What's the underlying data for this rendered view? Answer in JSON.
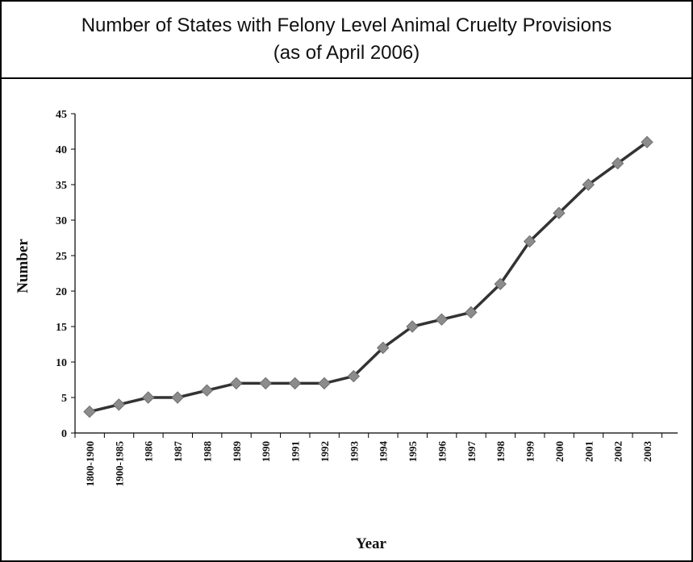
{
  "header": {
    "title": "Number of States with Felony Level Animal Cruelty Provisions",
    "subtitle": "(as of April 2006)"
  },
  "chart_data": {
    "type": "line",
    "title": "Number of States with Felony Level Animal Cruelty Provisions",
    "subtitle": "(as of April 2006)",
    "xlabel": "Year",
    "ylabel": "Number",
    "ylim": [
      0,
      45
    ],
    "yticks": [
      0,
      5,
      10,
      15,
      20,
      25,
      30,
      35,
      40,
      45
    ],
    "grid": false,
    "legend": "none",
    "categories": [
      "1800-1900",
      "1900-1985",
      "1986",
      "1987",
      "1988",
      "1989",
      "1990",
      "1991",
      "1992",
      "1993",
      "1994",
      "1995",
      "1996",
      "1997",
      "1998",
      "1999",
      "2000",
      "2001",
      "2002",
      "2003"
    ],
    "series": [
      {
        "values": [
          3,
          4,
          5,
          5,
          6,
          7,
          7,
          7,
          7,
          8,
          12,
          15,
          16,
          17,
          21,
          27,
          31,
          35,
          38,
          41
        ],
        "line_color": "#333333",
        "marker": "diamond",
        "marker_color": "#8c8c8c"
      }
    ]
  }
}
